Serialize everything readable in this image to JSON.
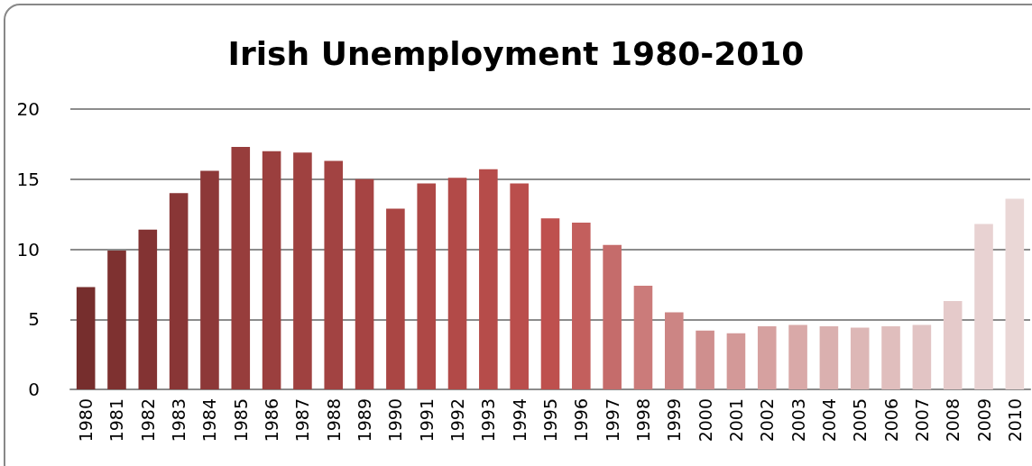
{
  "chart_data": {
    "type": "bar",
    "title": "Irish Unemployment 1980-2010",
    "categories": [
      "1980",
      "1981",
      "1982",
      "1983",
      "1984",
      "1985",
      "1986",
      "1987",
      "1988",
      "1989",
      "1990",
      "1991",
      "1992",
      "1993",
      "1994",
      "1995",
      "1996",
      "1997",
      "1998",
      "1999",
      "2000",
      "2001",
      "2002",
      "2003",
      "2004",
      "2005",
      "2006",
      "2007",
      "2008",
      "2009",
      "2010"
    ],
    "values": [
      7.3,
      9.9,
      11.4,
      14.0,
      15.6,
      17.3,
      17.0,
      16.9,
      16.3,
      15.0,
      12.9,
      14.7,
      15.1,
      15.7,
      14.7,
      12.2,
      11.9,
      10.3,
      7.4,
      5.5,
      4.2,
      4.0,
      4.5,
      4.6,
      4.5,
      4.4,
      4.5,
      4.6,
      6.3,
      11.8,
      13.6
    ],
    "colors": [
      "#762e2d",
      "#7e3130",
      "#833333",
      "#893636",
      "#8d3838",
      "#973d3c",
      "#9b3f3e",
      "#9f4140",
      "#a24342",
      "#a64443",
      "#aa4644",
      "#ae4846",
      "#b24a48",
      "#b64c4a",
      "#ba4e4c",
      "#be504e",
      "#c35f5d",
      "#c56c6b",
      "#cb7b7a",
      "#cc8584",
      "#cf8f8e",
      "#d39998",
      "#d6a1a0",
      "#d9a9a8",
      "#dab0af",
      "#ddb7b6",
      "#e0bebd",
      "#e2c4c4",
      "#e5caca",
      "#e8d2d2",
      "#ead7d6"
    ],
    "ylim": [
      0,
      20
    ],
    "yticks": [
      0,
      5,
      10,
      15,
      20
    ],
    "grid": "y"
  }
}
